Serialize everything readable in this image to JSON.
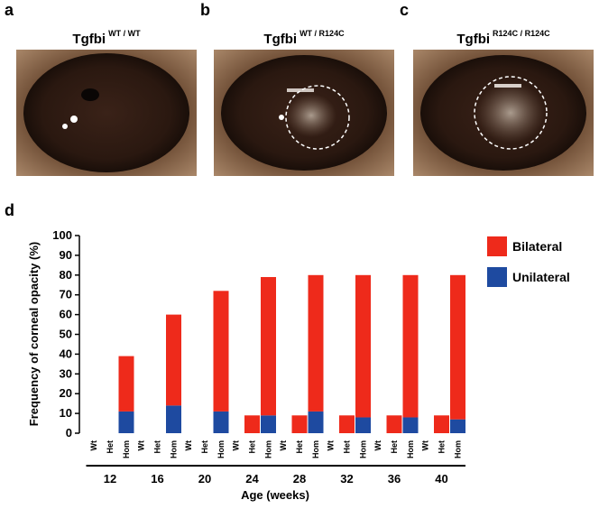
{
  "panels": [
    {
      "label": "a",
      "title": "Tgfbi",
      "superscript": "WT / WT"
    },
    {
      "label": "b",
      "title": "Tgfbi",
      "superscript": "WT / R124C"
    },
    {
      "label": "c",
      "title": "Tgfbi",
      "superscript": "R124C / R124C"
    }
  ],
  "chart_data": {
    "type": "stacked-bar",
    "label": "d",
    "ylabel": "Frequency of corneal opacity (%)",
    "xlabel": "Age (weeks)",
    "groups": [
      "12",
      "16",
      "20",
      "24",
      "28",
      "32",
      "36",
      "40"
    ],
    "categories": [
      "Wt",
      "Het",
      "Hom",
      "Wt",
      "Het",
      "Hom",
      "Wt",
      "Het",
      "Hom",
      "Wt",
      "Het",
      "Hom",
      "Wt",
      "Het",
      "Hom",
      "Wt",
      "Het",
      "Hom",
      "Wt",
      "Het",
      "Hom",
      "Wt",
      "Het",
      "Hom"
    ],
    "series": [
      {
        "name": "Bilateral",
        "color": "#ee2a1b",
        "values": [
          0,
          0,
          28,
          0,
          0,
          46,
          0,
          0,
          61,
          0,
          9,
          70,
          0,
          9,
          69,
          0,
          9,
          72,
          0,
          9,
          72,
          0,
          9,
          73
        ]
      },
      {
        "name": "Unilateral",
        "color": "#1e4aa0",
        "values": [
          0,
          0,
          11,
          0,
          0,
          14,
          0,
          0,
          11,
          0,
          0,
          9,
          0,
          0,
          11,
          0,
          0,
          8,
          0,
          0,
          8,
          0,
          0,
          7
        ]
      }
    ],
    "ylim": [
      0,
      100
    ],
    "yticks": [
      0,
      10,
      20,
      30,
      40,
      50,
      60,
      70,
      80,
      90,
      100
    ],
    "legend": "right"
  }
}
